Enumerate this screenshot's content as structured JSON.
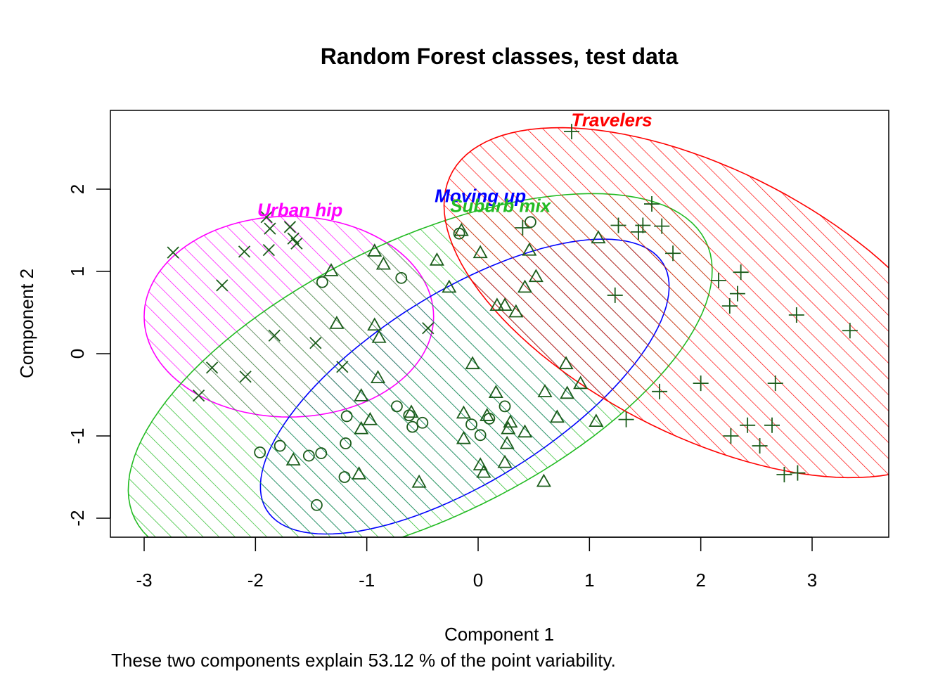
{
  "chart_data": {
    "type": "scatter",
    "title": "Random Forest classes, test data",
    "xlabel": "Component 1",
    "ylabel": "Component 2",
    "subtitle": "These two components explain 53.12 % of the point variability.",
    "xlim": [
      -3.3,
      3.7
    ],
    "ylim": [
      -2.2,
      2.95
    ],
    "x_ticks": [
      -3,
      -2,
      -1,
      0,
      1,
      2,
      3
    ],
    "y_ticks": [
      -2,
      -1,
      0,
      1,
      2
    ],
    "grid": false,
    "point_color": "#1a5c1a",
    "clusters": [
      {
        "name": "Urban hip",
        "color": "#ff00ff",
        "marker": "x",
        "hatch_angle": 45,
        "ellipse": {
          "center": [
            -1.7,
            0.45
          ],
          "semi_axes": [
            1.3,
            1.22
          ],
          "rotation_deg": 0
        },
        "label_pos": [
          -1.6,
          1.75
        ],
        "points": [
          [
            -2.74,
            1.23
          ],
          [
            -2.1,
            1.24
          ],
          [
            -2.3,
            0.83
          ],
          [
            -1.87,
            1.52
          ],
          [
            -1.88,
            1.26
          ],
          [
            -1.69,
            1.54
          ],
          [
            -1.66,
            1.4
          ],
          [
            -1.63,
            1.34
          ],
          [
            -1.83,
            0.22
          ],
          [
            -1.46,
            0.13
          ],
          [
            -1.22,
            -0.16
          ],
          [
            -0.45,
            0.31
          ],
          [
            -2.39,
            -0.17
          ],
          [
            -2.09,
            -0.28
          ],
          [
            -2.51,
            -0.51
          ],
          [
            -1.9,
            1.66
          ]
        ]
      },
      {
        "name": "Moving up",
        "color": "#0000ff",
        "marker": "circle",
        "hatch_angle": 45,
        "ellipse": {
          "center": [
            -0.12,
            -0.4
          ],
          "semi_axes": [
            2.35,
            1.03
          ],
          "rotation_deg": 44
        },
        "label_pos": [
          0.02,
          1.92
        ],
        "points": [
          [
            0.47,
            1.6
          ],
          [
            -0.17,
            1.46
          ],
          [
            -0.69,
            0.92
          ],
          [
            -1.4,
            0.87
          ],
          [
            -0.73,
            -0.64
          ],
          [
            -0.62,
            -0.75
          ],
          [
            -0.59,
            -0.89
          ],
          [
            -0.5,
            -0.84
          ],
          [
            -1.18,
            -0.76
          ],
          [
            -0.06,
            -0.86
          ],
          [
            0.1,
            -0.79
          ],
          [
            0.24,
            -0.64
          ],
          [
            0.02,
            -0.99
          ],
          [
            -1.19,
            -1.09
          ],
          [
            -1.78,
            -1.12
          ],
          [
            -1.96,
            -1.2
          ],
          [
            -1.52,
            -1.24
          ],
          [
            -1.41,
            -1.21
          ],
          [
            -1.2,
            -1.5
          ],
          [
            -1.45,
            -1.84
          ]
        ]
      },
      {
        "name": "Suburb mix",
        "color": "#22bb22",
        "marker": "triangle",
        "hatch_angle": 45,
        "ellipse": {
          "center": [
            -0.52,
            -0.32
          ],
          "semi_axes": [
            3.1,
            1.55
          ],
          "rotation_deg": 38
        },
        "label_pos": [
          0.2,
          1.8
        ],
        "points": [
          [
            -0.15,
            1.49
          ],
          [
            1.08,
            1.4
          ],
          [
            -0.93,
            1.24
          ],
          [
            0.46,
            1.25
          ],
          [
            0.02,
            1.22
          ],
          [
            -0.37,
            1.13
          ],
          [
            -0.85,
            1.08
          ],
          [
            -1.32,
            1.0
          ],
          [
            0.52,
            0.93
          ],
          [
            -0.26,
            0.8
          ],
          [
            0.42,
            0.8
          ],
          [
            0.17,
            0.58
          ],
          [
            0.24,
            0.58
          ],
          [
            0.34,
            0.5
          ],
          [
            -1.27,
            0.36
          ],
          [
            -0.93,
            0.34
          ],
          [
            -0.89,
            0.19
          ],
          [
            -0.05,
            -0.13
          ],
          [
            0.79,
            -0.13
          ],
          [
            -0.9,
            -0.3
          ],
          [
            0.92,
            -0.37
          ],
          [
            -1.05,
            -0.52
          ],
          [
            0.6,
            -0.47
          ],
          [
            0.16,
            -0.48
          ],
          [
            0.8,
            -0.49
          ],
          [
            -0.6,
            -0.72
          ],
          [
            -0.13,
            -0.73
          ],
          [
            0.08,
            -0.76
          ],
          [
            -0.97,
            -0.81
          ],
          [
            0.29,
            -0.84
          ],
          [
            0.71,
            -0.78
          ],
          [
            -1.05,
            -0.92
          ],
          [
            1.06,
            -0.83
          ],
          [
            0.42,
            -0.96
          ],
          [
            0.27,
            -0.92
          ],
          [
            -0.13,
            -1.04
          ],
          [
            0.26,
            -1.1
          ],
          [
            -1.66,
            -1.3
          ],
          [
            0.02,
            -1.36
          ],
          [
            0.05,
            -1.45
          ],
          [
            0.24,
            -1.33
          ],
          [
            -1.07,
            -1.47
          ],
          [
            -0.53,
            -1.57
          ],
          [
            0.59,
            -1.56
          ]
        ]
      },
      {
        "name": "Travelers",
        "color": "#ff0000",
        "marker": "plus",
        "hatch_angle": 45,
        "ellipse": {
          "center": [
            2.04,
            0.62
          ],
          "semi_axes": [
            2.8,
            1.48
          ],
          "rotation_deg": -40
        },
        "label_pos": [
          1.2,
          2.84
        ],
        "points": [
          [
            0.84,
            2.7
          ],
          [
            1.56,
            1.82
          ],
          [
            1.26,
            1.56
          ],
          [
            1.48,
            1.56
          ],
          [
            1.65,
            1.55
          ],
          [
            1.44,
            1.48
          ],
          [
            0.4,
            1.53
          ],
          [
            1.75,
            1.22
          ],
          [
            2.36,
            0.99
          ],
          [
            2.16,
            0.89
          ],
          [
            2.33,
            0.73
          ],
          [
            1.23,
            0.71
          ],
          [
            2.26,
            0.58
          ],
          [
            2.86,
            0.47
          ],
          [
            3.34,
            0.28
          ],
          [
            2.0,
            -0.36
          ],
          [
            2.67,
            -0.36
          ],
          [
            1.63,
            -0.46
          ],
          [
            1.33,
            -0.8
          ],
          [
            2.42,
            -0.87
          ],
          [
            2.64,
            -0.87
          ],
          [
            2.27,
            -1.0
          ],
          [
            2.53,
            -1.12
          ],
          [
            2.75,
            -1.47
          ],
          [
            2.87,
            -1.45
          ]
        ]
      }
    ]
  }
}
